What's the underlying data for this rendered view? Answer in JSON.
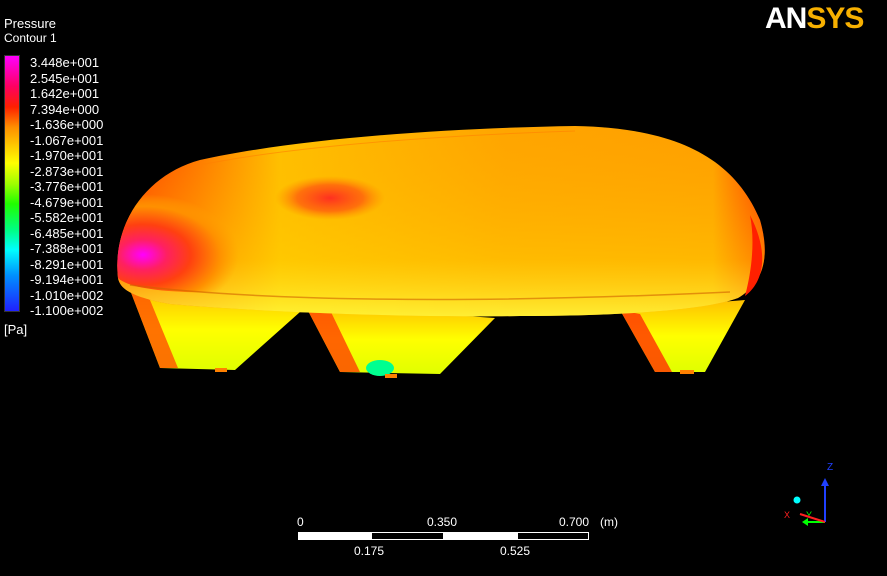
{
  "header": {
    "title": "Pressure",
    "subtitle": "Contour 1"
  },
  "legend": {
    "values": [
      "3.448e+001",
      "2.545e+001",
      "1.642e+001",
      "7.394e+000",
      "-1.636e+000",
      "-1.067e+001",
      "-1.970e+001",
      "-2.873e+001",
      "-3.776e+001",
      "-4.679e+001",
      "-5.582e+001",
      "-6.485e+001",
      "-7.388e+001",
      "-8.291e+001",
      "-9.194e+001",
      "-1.010e+002",
      "-1.100e+002"
    ],
    "unit": "[Pa]",
    "colors": [
      "#ff00ff",
      "#ff0040",
      "#ff4000",
      "#ff9000",
      "#ffe000",
      "#c0ff00",
      "#20ff00",
      "#00ffc0",
      "#00b0ff",
      "#0040ff"
    ]
  },
  "logo": {
    "part1": "AN",
    "part2": "SYS"
  },
  "scale": {
    "top_labels": [
      "0",
      "0.350",
      "0.700"
    ],
    "unit": "(m)",
    "bottom_labels": [
      "0.175",
      "0.525"
    ]
  },
  "triad": {
    "z": "Z",
    "x": "X",
    "y": "Y"
  }
}
